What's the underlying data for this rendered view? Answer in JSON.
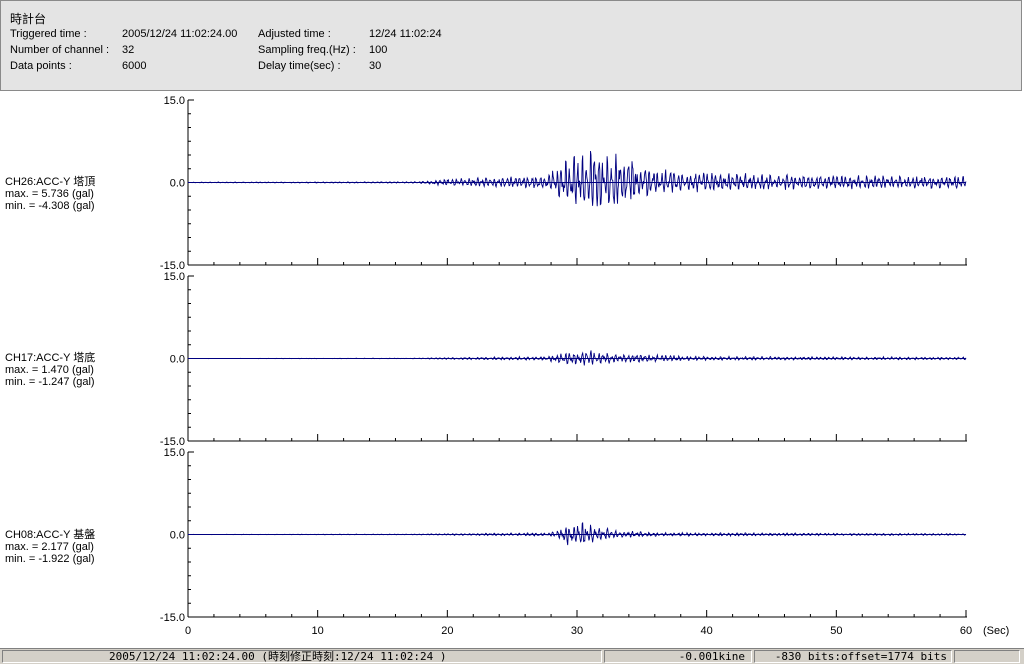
{
  "header": {
    "title": "時計台",
    "triggered_label": "Triggered time :",
    "triggered_value": "2005/12/24 11:02:24.00",
    "channels_label": "Number of channel :",
    "channels_value": "32",
    "datapoints_label": "Data points :",
    "datapoints_value": "6000",
    "adjusted_label": "Adjusted time :",
    "adjusted_value": "12/24 11:02:24",
    "sampling_label": "Sampling freq.(Hz) :",
    "sampling_value": "100",
    "delay_label": "Delay time(sec) :",
    "delay_value": "30"
  },
  "channels": [
    {
      "name": "CH26:ACC-Y 塔頂",
      "max": "max. = 5.736 (gal)",
      "min": "min. = -4.308 (gal)"
    },
    {
      "name": "CH17:ACC-Y 塔底",
      "max": "max. = 1.470 (gal)",
      "min": "min. = -1.247 (gal)"
    },
    {
      "name": "CH08:ACC-Y 基盤",
      "max": "max. = 2.177 (gal)",
      "min": "min. = -1.922 (gal)"
    }
  ],
  "chart_data": {
    "type": "line",
    "x_label": "(Sec)",
    "xlim": [
      0,
      60
    ],
    "x_ticks": [
      0,
      10,
      20,
      30,
      40,
      50,
      60
    ],
    "x_tick_labels": [
      "0",
      "10",
      "20",
      "30",
      "40",
      "50",
      "60"
    ],
    "ylim": [
      -15,
      15
    ],
    "y_tick_labels": [
      "15.0",
      "0.0",
      "-15.0"
    ],
    "series_color": "#000080",
    "series": [
      {
        "name": "CH26:ACC-Y 塔頂",
        "max": 5.736,
        "min": -4.308,
        "envelope": {
          "t": [
            0,
            17.5,
            20,
            27.5,
            29.5,
            31.5,
            34,
            36,
            40,
            45,
            50,
            55,
            60
          ],
          "a": [
            0.05,
            0.1,
            0.5,
            0.9,
            3.6,
            4.6,
            3.4,
            1.7,
            1.4,
            1.1,
            1.0,
            0.9,
            0.9
          ]
        }
      },
      {
        "name": "CH17:ACC-Y 塔底",
        "max": 1.47,
        "min": -1.247,
        "envelope": {
          "t": [
            0,
            17.5,
            20,
            27.5,
            29,
            30.5,
            33,
            36,
            40,
            50,
            60
          ],
          "a": [
            0.02,
            0.05,
            0.15,
            0.3,
            0.9,
            1.3,
            0.8,
            0.55,
            0.3,
            0.25,
            0.2
          ]
        }
      },
      {
        "name": "CH08:ACC-Y 基盤",
        "max": 2.177,
        "min": -1.922,
        "envelope": {
          "t": [
            0,
            17.5,
            20,
            28,
            29,
            30,
            31.5,
            33,
            36,
            40,
            50,
            60
          ],
          "a": [
            0.02,
            0.05,
            0.1,
            0.2,
            1.2,
            1.6,
            0.9,
            0.45,
            0.25,
            0.2,
            0.15,
            0.1
          ]
        }
      }
    ]
  },
  "status": {
    "time": "2005/12/24 11:02:24.00  (時刻修正時刻:12/24 11:02:24  )",
    "velocity": "-0.001kine",
    "bits": "-830 bits:offset=1774 bits"
  }
}
